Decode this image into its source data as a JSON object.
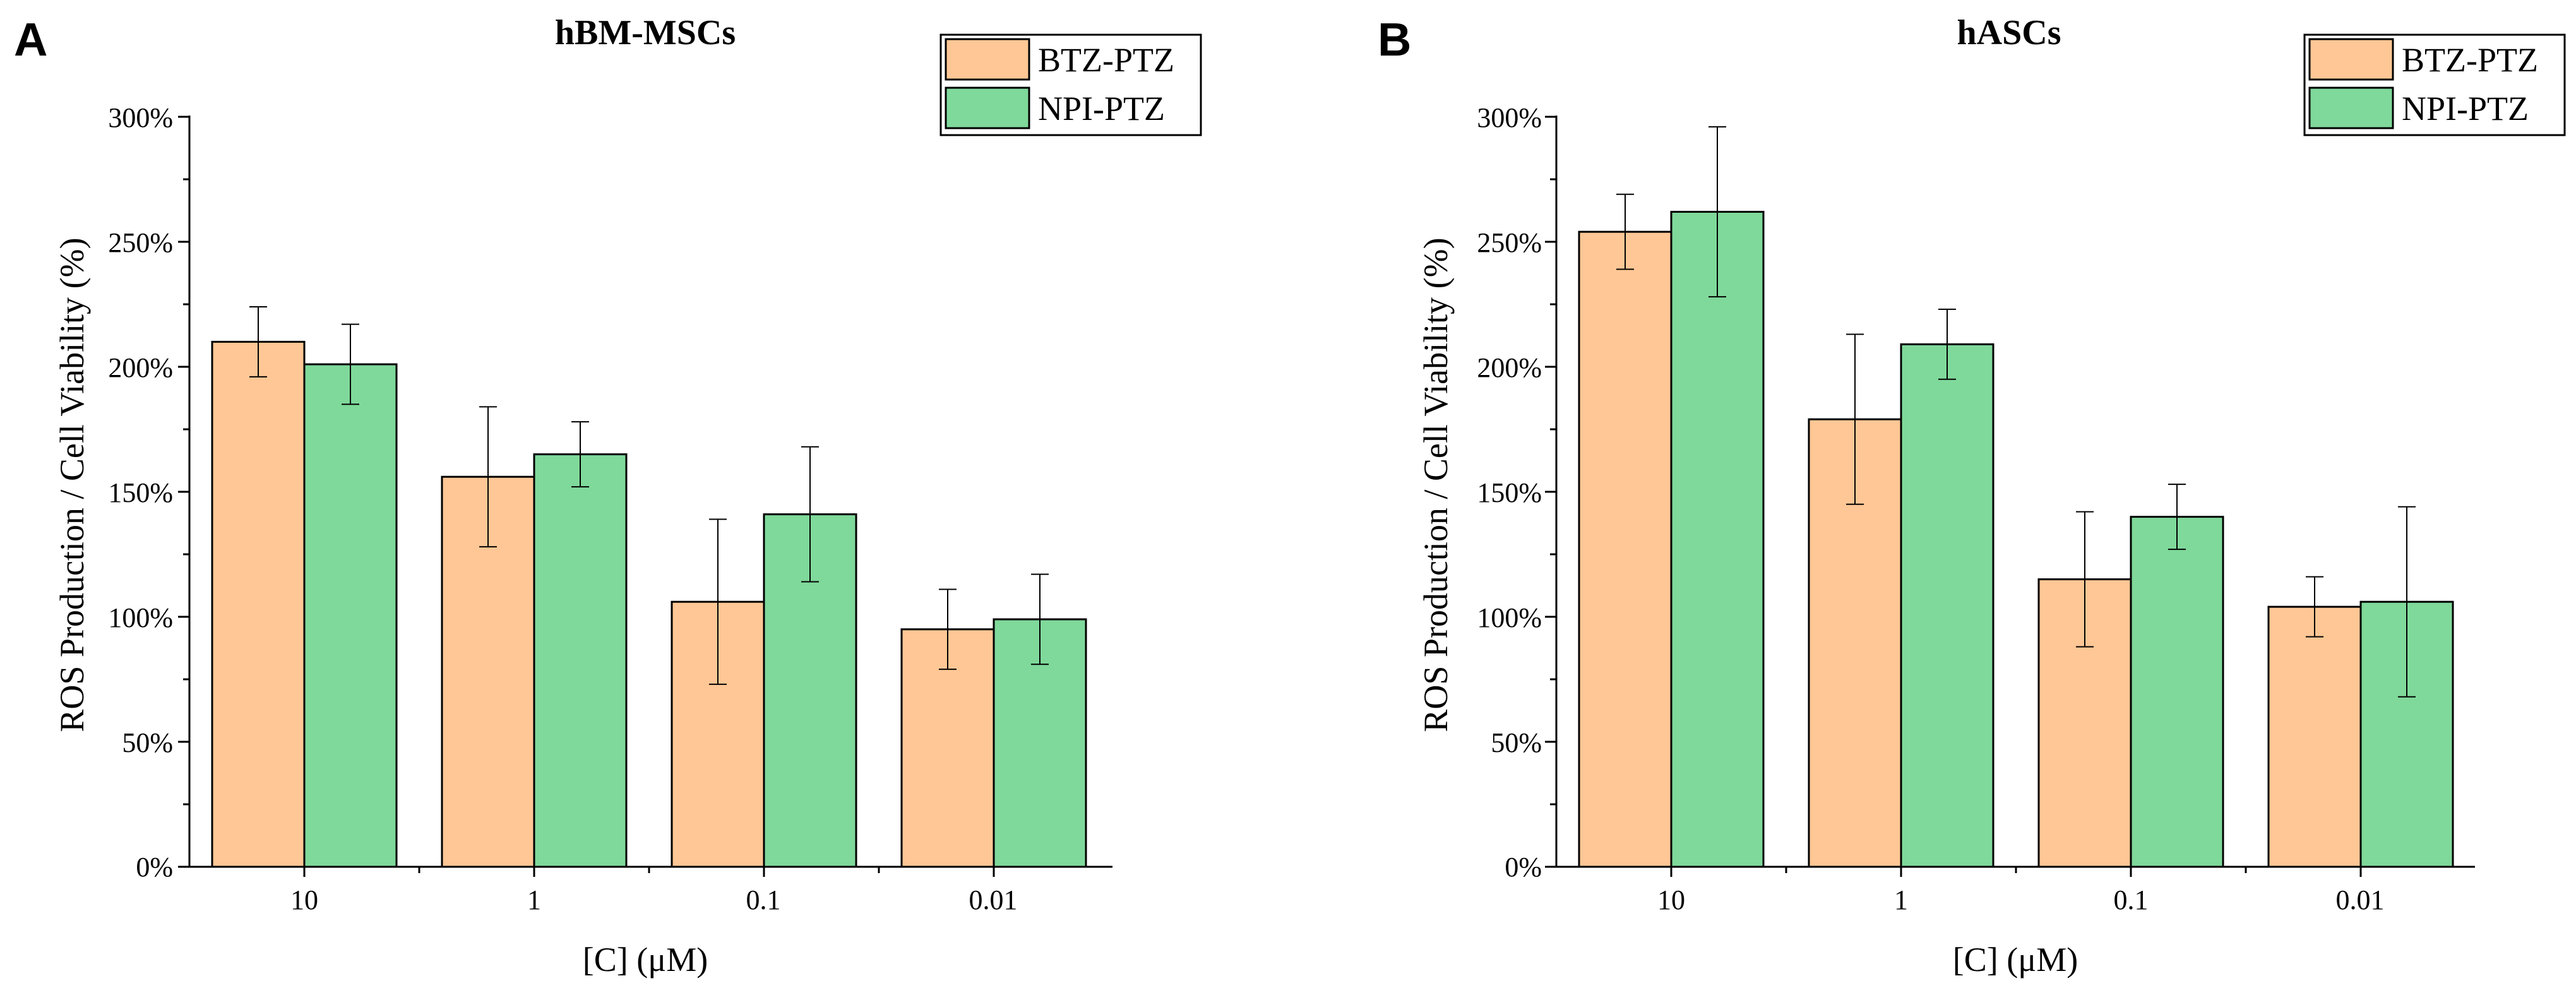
{
  "colors": {
    "btz": "#FEC795",
    "npi": "#7FD99A",
    "stroke": "#000000"
  },
  "chart_data": [
    {
      "panel": "A",
      "type": "bar",
      "title": "hBM-MSCs",
      "xlabel": "[C] (μM)",
      "ylabel": "ROS Production / Cell Viability (%)",
      "categories": [
        "10",
        "1",
        "0.1",
        "0.01"
      ],
      "ylim": [
        0,
        300
      ],
      "yticks": [
        0,
        50,
        100,
        150,
        200,
        250,
        300
      ],
      "ytick_labels": [
        "0%",
        "50%",
        "100%",
        "150%",
        "200%",
        "250%",
        "300%"
      ],
      "legend_position": "top-right",
      "series": [
        {
          "name": "BTZ-PTZ",
          "color_key": "btz",
          "values": [
            210,
            156,
            106,
            95
          ],
          "errors": [
            14,
            28,
            33,
            16
          ]
        },
        {
          "name": "NPI-PTZ",
          "color_key": "npi",
          "values": [
            201,
            165,
            141,
            99
          ],
          "errors": [
            16,
            13,
            27,
            18
          ]
        }
      ]
    },
    {
      "panel": "B",
      "type": "bar",
      "title": "hASCs",
      "xlabel": "[C] (μM)",
      "ylabel": "ROS Production / Cell Viability (%)",
      "categories": [
        "10",
        "1",
        "0.1",
        "0.01"
      ],
      "ylim": [
        0,
        300
      ],
      "yticks": [
        0,
        50,
        100,
        150,
        200,
        250,
        300
      ],
      "ytick_labels": [
        "0%",
        "50%",
        "100%",
        "150%",
        "200%",
        "250%",
        "300%"
      ],
      "legend_position": "top-right",
      "series": [
        {
          "name": "BTZ-PTZ",
          "color_key": "btz",
          "values": [
            254,
            179,
            115,
            104
          ],
          "errors": [
            15,
            34,
            27,
            12
          ]
        },
        {
          "name": "NPI-PTZ",
          "color_key": "npi",
          "values": [
            262,
            209,
            140,
            106
          ],
          "errors": [
            34,
            14,
            13,
            38
          ]
        }
      ]
    }
  ]
}
